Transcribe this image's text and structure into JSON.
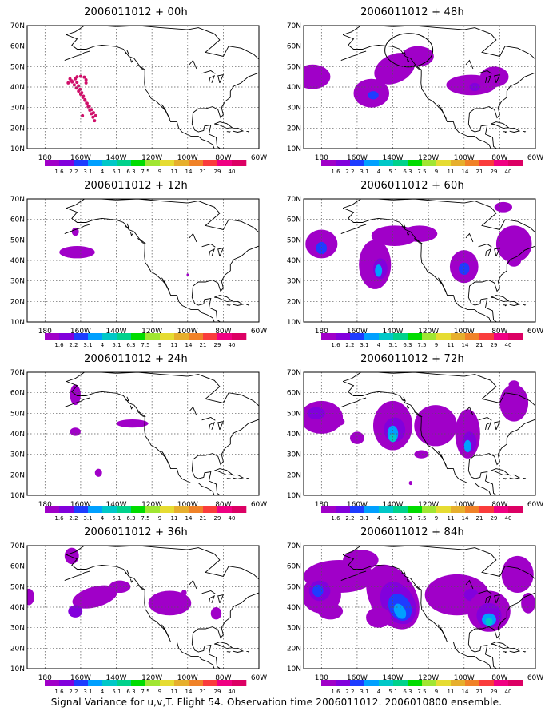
{
  "figure": {
    "caption": "Signal Variance for u,v,T. Flight 54. Observation time 2006011012. 2006010800 ensemble.",
    "colorbar": {
      "labels": [
        "1.6",
        "2.2",
        "3.1",
        "4",
        "5.1",
        "6.3",
        "7.5",
        "9",
        "11",
        "14",
        "21",
        "29",
        "40"
      ],
      "colors": [
        "#a000c8",
        "#8200dc",
        "#1e3cff",
        "#00a0ff",
        "#00c8c8",
        "#00d28c",
        "#00dc00",
        "#a0e632",
        "#e6dc32",
        "#e6af2d",
        "#f08228",
        "#fa3c3c",
        "#f00082",
        "#dc0064"
      ]
    },
    "axes": {
      "lat_labels": [
        "70N",
        "60N",
        "50N",
        "40N",
        "30N",
        "20N",
        "10N"
      ],
      "lon_labels": [
        "180",
        "160W",
        "140W",
        "120W",
        "100W",
        "80W",
        "60W"
      ],
      "lat_range": [
        10,
        70
      ],
      "lon_range": [
        -190,
        -60
      ],
      "grid": true
    },
    "panels": [
      {
        "title": "2006011012 + 00h",
        "col": 0,
        "row": 0,
        "lead_h": 0
      },
      {
        "title": "2006011012 + 48h",
        "col": 1,
        "row": 0,
        "lead_h": 48
      },
      {
        "title": "2006011012 + 12h",
        "col": 0,
        "row": 1,
        "lead_h": 12
      },
      {
        "title": "2006011012 + 60h",
        "col": 1,
        "row": 1,
        "lead_h": 60
      },
      {
        "title": "2006011012 + 24h",
        "col": 0,
        "row": 2,
        "lead_h": 24
      },
      {
        "title": "2006011012 + 72h",
        "col": 1,
        "row": 2,
        "lead_h": 72
      },
      {
        "title": "2006011012 + 36h",
        "col": 0,
        "row": 3,
        "lead_h": 36
      },
      {
        "title": "2006011012 + 84h",
        "col": 1,
        "row": 3,
        "lead_h": 84
      }
    ]
  }
}
